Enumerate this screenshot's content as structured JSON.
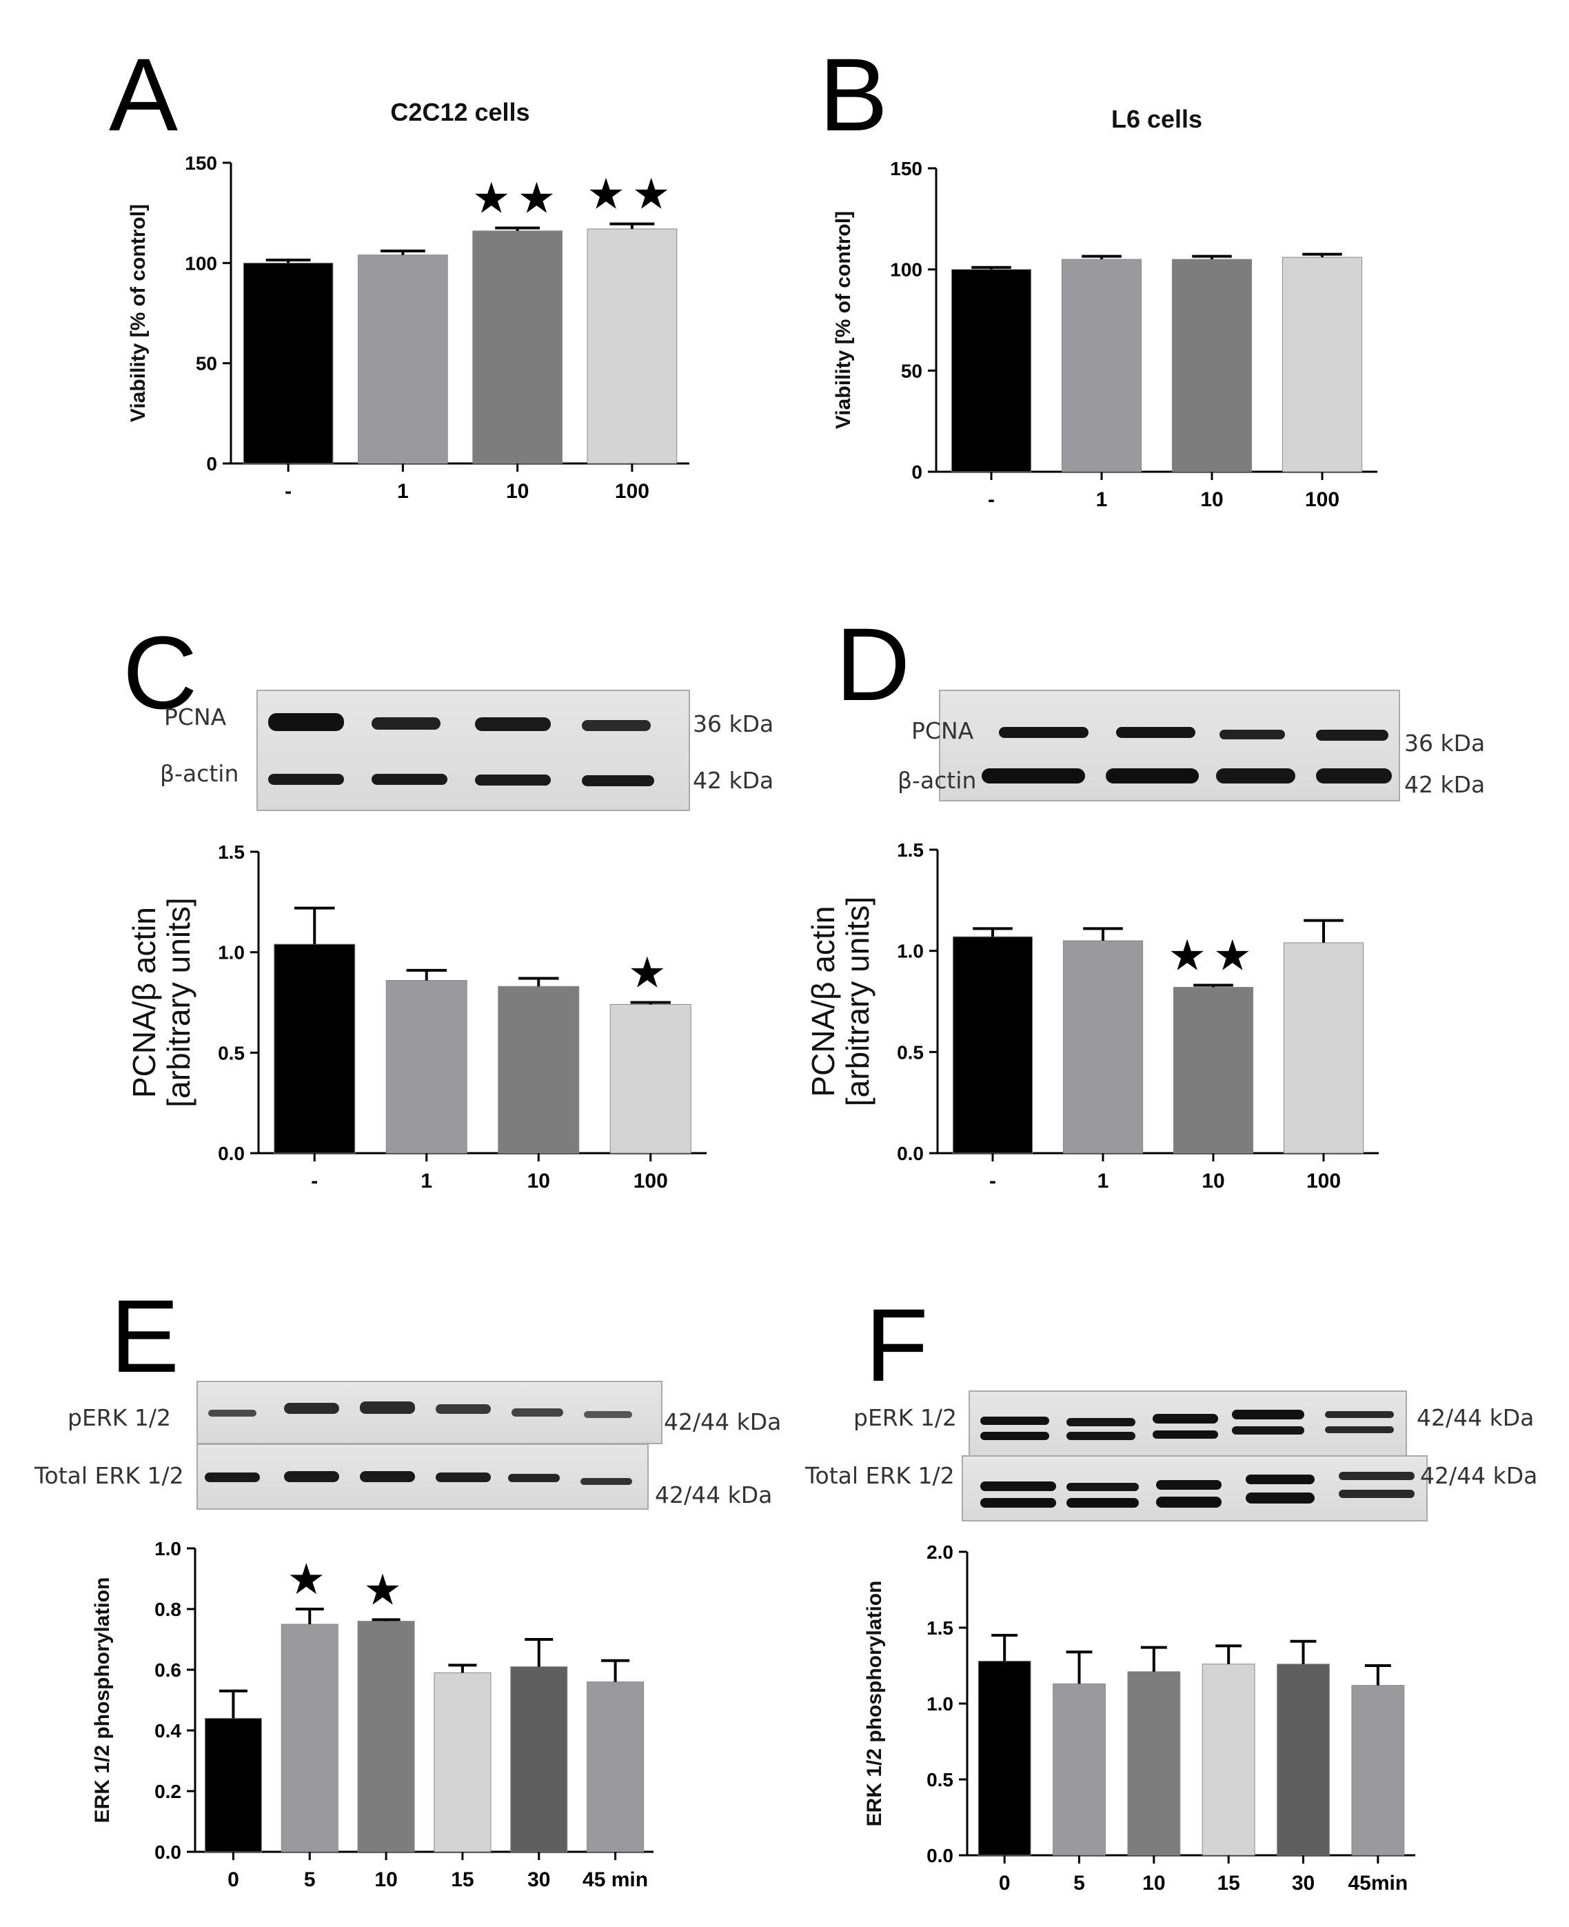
{
  "panels": [
    {
      "letter": "A"
    },
    {
      "letter": "B"
    },
    {
      "letter": "C"
    },
    {
      "letter": "D"
    },
    {
      "letter": "E"
    },
    {
      "letter": "F"
    }
  ],
  "blots": {
    "C": {
      "rows": [
        "PCNA",
        "β-actin"
      ],
      "kda": [
        "36 kDa",
        "42 kDa"
      ]
    },
    "D": {
      "rows": [
        "PCNA",
        "β-actin"
      ],
      "kda": [
        "36 kDa",
        "42 kDa"
      ]
    },
    "E": {
      "rows": [
        "pERK 1/2",
        "Total ERK 1/2"
      ],
      "kda": [
        "42/44 kDa",
        "42/44 kDa"
      ]
    },
    "F": {
      "rows": [
        "pERK 1/2",
        "Total ERK 1/2"
      ],
      "kda": [
        "42/44 kDa",
        "42/44 kDa"
      ]
    }
  },
  "colors": {
    "black": "#000000",
    "gray1": "#9a9a9e",
    "gray2": "#7d7d7d",
    "gray3": "#d4d4d4",
    "gray4": "#5f5f5f",
    "gray5": "#9a9a9e"
  },
  "chart_data": [
    {
      "id": "A",
      "type": "bar",
      "title": "C2C12 cells",
      "ylabel": "Viability [% of control]",
      "xlabel": "",
      "categories": [
        "-",
        "1",
        "10",
        "100"
      ],
      "values": [
        100,
        104,
        116,
        117
      ],
      "errors": [
        1.5,
        2,
        1.5,
        2.5
      ],
      "significance": [
        "",
        "",
        "★★",
        "★★"
      ],
      "ylim": [
        0,
        150
      ],
      "yticks": [
        "0",
        "50",
        "100",
        "150"
      ]
    },
    {
      "id": "B",
      "type": "bar",
      "title": "L6 cells",
      "ylabel": "Viability [% of control]",
      "xlabel": "",
      "categories": [
        "-",
        "1",
        "10",
        "100"
      ],
      "values": [
        100,
        105,
        105,
        106
      ],
      "errors": [
        1,
        1.5,
        1.5,
        1.5
      ],
      "significance": [
        "",
        "",
        "",
        ""
      ],
      "ylim": [
        0,
        150
      ],
      "yticks": [
        "0",
        "50",
        "100",
        "150"
      ]
    },
    {
      "id": "C",
      "type": "bar",
      "title": "",
      "ylabel": "PCNA/β actin [arbitrary units]",
      "xlabel": "",
      "categories": [
        "-",
        "1",
        "10",
        "100"
      ],
      "values": [
        1.04,
        0.86,
        0.83,
        0.74
      ],
      "errors": [
        0.18,
        0.05,
        0.04,
        0.01
      ],
      "significance": [
        "",
        "",
        "",
        "★"
      ],
      "ylim": [
        0,
        1.5
      ],
      "yticks": [
        "0.0",
        "0.5",
        "1.0",
        "1.5"
      ]
    },
    {
      "id": "D",
      "type": "bar",
      "title": "",
      "ylabel": "PCNA/β actin [arbitrary units]",
      "xlabel": "",
      "categories": [
        "-",
        "1",
        "10",
        "100"
      ],
      "values": [
        1.07,
        1.05,
        0.82,
        1.04
      ],
      "errors": [
        0.04,
        0.06,
        0.01,
        0.11
      ],
      "significance": [
        "",
        "",
        "★★",
        ""
      ],
      "ylim": [
        0,
        1.5
      ],
      "yticks": [
        "0.0",
        "0.5",
        "1.0",
        "1.5"
      ]
    },
    {
      "id": "E",
      "type": "bar",
      "title": "",
      "ylabel": "ERK 1/2 phosphorylation",
      "xlabel": "",
      "categories": [
        "0",
        "5",
        "10",
        "15",
        "30",
        "45 min"
      ],
      "values": [
        0.44,
        0.75,
        0.76,
        0.59,
        0.61,
        0.56
      ],
      "errors": [
        0.09,
        0.05,
        0.005,
        0.025,
        0.09,
        0.07
      ],
      "significance": [
        "",
        "★",
        "★",
        "",
        "",
        ""
      ],
      "ylim": [
        0,
        1.0
      ],
      "yticks": [
        "0.0",
        "0.2",
        "0.4",
        "0.6",
        "0.8",
        "1.0"
      ]
    },
    {
      "id": "F",
      "type": "bar",
      "title": "",
      "ylabel": "ERK 1/2 phosphorylation",
      "xlabel": "",
      "categories": [
        "0",
        "5",
        "10",
        "15",
        "30",
        "45min"
      ],
      "values": [
        1.28,
        1.13,
        1.21,
        1.26,
        1.26,
        1.12
      ],
      "errors": [
        0.17,
        0.21,
        0.16,
        0.12,
        0.15,
        0.13
      ],
      "significance": [
        "",
        "",
        "",
        "",
        "",
        ""
      ],
      "ylim": [
        0,
        2.0
      ],
      "yticks": [
        "0.0",
        "0.5",
        "1.0",
        "1.5",
        "2.0"
      ]
    }
  ]
}
